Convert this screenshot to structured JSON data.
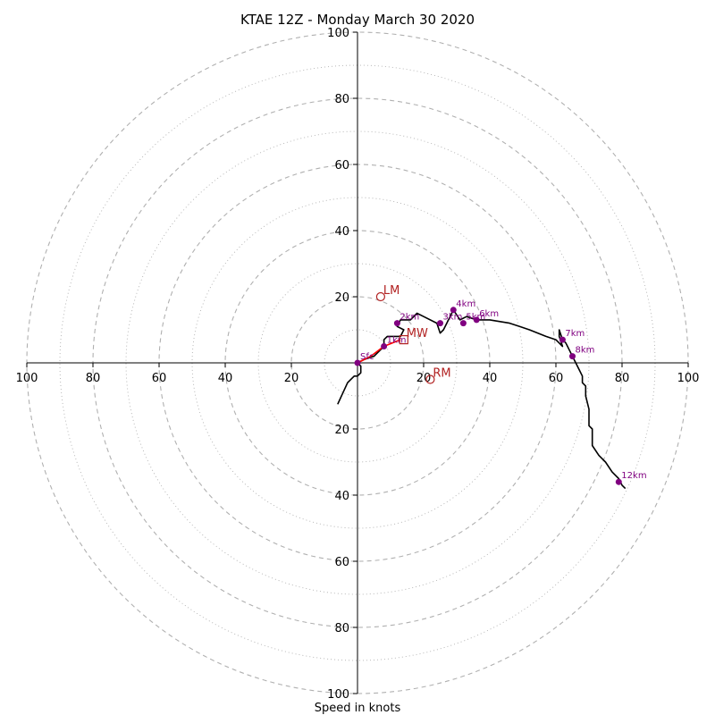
{
  "chart_data": {
    "type": "hodograph",
    "title": "KTAE 12Z - Monday March 30 2020",
    "xlabel": "Speed in knots",
    "range": [
      -100,
      100
    ],
    "major_rings": [
      20,
      40,
      60,
      80,
      100
    ],
    "minor_rings": [
      10,
      30,
      50,
      70,
      90
    ],
    "x_ticks": [
      "100",
      "80",
      "60",
      "40",
      "20",
      "20",
      "40",
      "60",
      "80",
      "100"
    ],
    "y_ticks_up": [
      "20",
      "40",
      "60",
      "80",
      "100"
    ],
    "y_ticks_down": [
      "20",
      "40",
      "60",
      "80",
      "100"
    ],
    "colors": {
      "hodograph": "#000000",
      "height_marker": "#800080",
      "storm_motion": "#b22222",
      "lowlevel_segment": "#ff0000",
      "grid": "#b0b0b0",
      "axis": "#000000"
    },
    "hodograph": [
      [
        -6,
        -12.5
      ],
      [
        -3,
        -6
      ],
      [
        -1,
        -4
      ],
      [
        0,
        -4
      ],
      [
        1,
        -3
      ],
      [
        1,
        -1
      ],
      [
        0,
        0
      ],
      [
        2,
        1
      ],
      [
        5,
        2
      ],
      [
        8,
        5
      ],
      [
        8,
        7
      ],
      [
        9,
        8
      ],
      [
        13,
        8
      ],
      [
        14,
        10
      ],
      [
        12,
        11
      ],
      [
        13,
        13
      ],
      [
        16,
        13
      ],
      [
        18,
        15
      ],
      [
        20,
        14
      ],
      [
        24,
        12
      ],
      [
        25,
        9
      ],
      [
        26,
        10
      ],
      [
        27,
        12
      ],
      [
        28,
        14
      ],
      [
        29,
        16
      ],
      [
        31,
        13
      ],
      [
        33,
        14
      ],
      [
        36,
        13
      ],
      [
        40,
        13
      ],
      [
        46,
        12
      ],
      [
        49,
        11
      ],
      [
        52,
        10
      ],
      [
        57,
        8
      ],
      [
        60,
        7
      ],
      [
        61,
        6
      ],
      [
        62,
        5
      ],
      [
        61,
        8
      ],
      [
        61,
        10
      ],
      [
        62,
        7
      ],
      [
        63,
        6
      ],
      [
        64,
        4
      ],
      [
        65,
        2
      ],
      [
        66,
        0
      ],
      [
        67,
        -2
      ],
      [
        68,
        -4
      ],
      [
        68,
        -6
      ],
      [
        69,
        -7
      ],
      [
        69,
        -10
      ],
      [
        70,
        -14
      ],
      [
        70,
        -19
      ],
      [
        71,
        -20
      ],
      [
        71,
        -25
      ],
      [
        73,
        -28
      ],
      [
        75,
        -30
      ],
      [
        77,
        -33
      ],
      [
        79,
        -35
      ],
      [
        80,
        -37
      ],
      [
        81,
        -38
      ]
    ],
    "lowlevel_segment": [
      [
        0,
        0
      ],
      [
        4,
        2
      ],
      [
        8,
        5
      ],
      [
        13,
        7
      ]
    ],
    "height_markers": [
      {
        "label": "Sfc",
        "u": 0,
        "v": 0
      },
      {
        "label": "1km",
        "u": 8,
        "v": 5
      },
      {
        "label": "2km",
        "u": 12,
        "v": 12
      },
      {
        "label": "3km",
        "u": 25,
        "v": 12
      },
      {
        "label": "4km",
        "u": 29,
        "v": 16
      },
      {
        "label": "5km",
        "u": 32,
        "v": 12
      },
      {
        "label": "6km",
        "u": 36,
        "v": 13
      },
      {
        "label": "7km",
        "u": 62,
        "v": 7
      },
      {
        "label": "8km",
        "u": 65,
        "v": 2
      },
      {
        "label": "12km",
        "u": 79,
        "v": -36
      }
    ],
    "storm_motions": [
      {
        "label": "LM",
        "u": 7,
        "v": 20,
        "shape": "circle"
      },
      {
        "label": "MW",
        "u": 14,
        "v": 7,
        "shape": "square"
      },
      {
        "label": "RM",
        "u": 22,
        "v": -5,
        "shape": "circle"
      }
    ]
  }
}
